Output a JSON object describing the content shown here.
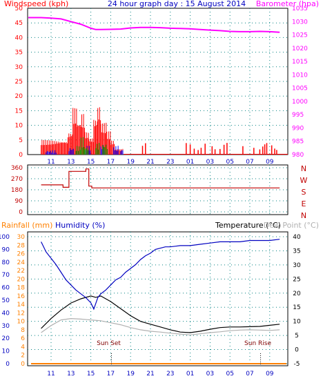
{
  "colors": {
    "wind": "#ff0000",
    "gust_green": "#00a000",
    "gust_blue": "#0000ff",
    "baro": "#ff00ff",
    "dir": "#c00000",
    "humidity": "#0000c0",
    "temp": "#000000",
    "dew": "#b0b0b0",
    "rain": "#ff8000",
    "grid": "#008080",
    "axis_blue": "#0000c0"
  },
  "chart_data": [
    {
      "type": "bar",
      "title": "24 hour graph day : 15 August 2014",
      "left_label": "Windspeed (kph)",
      "right_label": "Barometer (hpa)",
      "x_ticks": [
        "11",
        "13",
        "15",
        "17",
        "19",
        "21",
        "23",
        "01",
        "03",
        "05",
        "07",
        "09"
      ],
      "x_range_hours": [
        0,
        24
      ],
      "y_left_ticks": [
        "0",
        "5",
        "10",
        "15",
        "20",
        "25",
        "30",
        "35",
        "40",
        "45",
        "50"
      ],
      "y_left_range": [
        0,
        50
      ],
      "y_right_ticks": [
        "980",
        "985",
        "990",
        "995",
        "1000",
        "1005",
        "1010",
        "1015",
        "1020",
        "1025",
        "1030",
        "1035"
      ],
      "y_right_range": [
        980,
        1035
      ],
      "series": [
        {
          "kind": "line",
          "x_hours": [
            0,
            1,
            2,
            3,
            4,
            5,
            5.5,
            6,
            7,
            8,
            9,
            10,
            11,
            12,
            13,
            14,
            15,
            16,
            17,
            18,
            19,
            20,
            21,
            22,
            23,
            24
          ],
          "values": [
            1031.5,
            1031.3,
            1031.0,
            1030.0,
            1029.0,
            1027.5,
            1027.0,
            1027.0,
            1027.1,
            1027.2,
            1027.6,
            1027.8,
            1027.8,
            1027.7,
            1027.5,
            1027.4,
            1027.3,
            1027.0,
            1026.8,
            1026.6,
            1026.3,
            1026.2,
            1026.2,
            1026.3,
            1026.2,
            1026.0
          ]
        },
        {
          "kind": "bars",
          "segments": [
            {
              "from_hour": 0,
              "to_hour": 2.7,
              "level": 5
            },
            {
              "from_hour": 2.7,
              "to_hour": 3.2,
              "level": 8
            },
            {
              "from_hour": 3.2,
              "to_hour": 3.6,
              "level": 16
            },
            {
              "from_hour": 3.6,
              "to_hour": 4.0,
              "level": 12
            },
            {
              "from_hour": 4.0,
              "to_hour": 4.4,
              "level": 14
            },
            {
              "from_hour": 4.4,
              "to_hour": 4.8,
              "level": 8
            },
            {
              "from_hour": 4.8,
              "to_hour": 5.3,
              "level": 6
            },
            {
              "from_hour": 5.3,
              "to_hour": 5.7,
              "level": 13
            },
            {
              "from_hour": 5.7,
              "to_hour": 6.0,
              "level": 17
            },
            {
              "from_hour": 6.0,
              "to_hour": 6.6,
              "level": 11
            },
            {
              "from_hour": 6.6,
              "to_hour": 7.0,
              "level": 8
            },
            {
              "from_hour": 7.0,
              "to_hour": 7.4,
              "level": 5
            },
            {
              "from_hour": 7.4,
              "to_hour": 8.3,
              "level": 2
            },
            {
              "from_hour": 8.3,
              "to_hour": 24,
              "level": 0
            }
          ],
          "sparse_x_hours": [
            10.2,
            10.5,
            14.6,
            15.0,
            15.4,
            15.8,
            16.1,
            16.5,
            17.2,
            17.5,
            18.0,
            18.4,
            18.7,
            20.3,
            21.4,
            22.0,
            22.3,
            22.5,
            22.7,
            23.2,
            23.5,
            23.7
          ]
        },
        {
          "kind": "gust_green",
          "segments": [
            {
              "from_hour": 3.5,
              "to_hour": 4.0,
              "level": 3
            },
            {
              "from_hour": 4.0,
              "to_hour": 4.4,
              "level": 6
            },
            {
              "from_hour": 4.4,
              "to_hour": 4.8,
              "level": 3
            },
            {
              "from_hour": 5.5,
              "to_hour": 5.9,
              "level": 4
            },
            {
              "from_hour": 6.2,
              "to_hour": 6.7,
              "level": 4
            }
          ]
        },
        {
          "kind": "gust_blue",
          "segments": [
            {
              "from_hour": 0.5,
              "to_hour": 1.5,
              "level": 1.5
            },
            {
              "from_hour": 2.8,
              "to_hour": 3.3,
              "level": 2.5
            },
            {
              "from_hour": 4.5,
              "to_hour": 5.0,
              "level": 3
            },
            {
              "from_hour": 6.0,
              "to_hour": 6.4,
              "level": 3.5
            },
            {
              "from_hour": 7.3,
              "to_hour": 7.8,
              "level": 3
            },
            {
              "from_hour": 8.0,
              "to_hour": 8.3,
              "level": 2
            }
          ]
        }
      ]
    },
    {
      "type": "line",
      "title": "",
      "y_left_ticks": [
        "0",
        "90",
        "180",
        "270",
        "360"
      ],
      "y_range": [
        0,
        360
      ],
      "right_labels": [
        "N",
        "W",
        "S",
        "E",
        "N"
      ],
      "series": [
        {
          "x_hours": [
            0,
            2.2,
            2.2,
            2.8,
            2.8,
            4.5,
            4.5,
            4.8,
            4.8,
            5.1,
            5.1,
            24
          ],
          "values": [
            220,
            220,
            200,
            200,
            330,
            330,
            350,
            350,
            210,
            210,
            195,
            195
          ]
        }
      ]
    },
    {
      "type": "line",
      "title": "",
      "left_label_rain": "Rainfall (mm)",
      "left_label_hum": "Humidity (%)",
      "right_label_temp": "Temperature (°C)",
      "right_label_dew": "Dew Point (°C)",
      "y_rain_ticks": [
        "0",
        "2",
        "4",
        "6",
        "8",
        "10",
        "12",
        "14",
        "16",
        "18",
        "20",
        "22",
        "24",
        "26",
        "28",
        "30"
      ],
      "y_rain_range": [
        0,
        30
      ],
      "y_hum_ticks": [
        "0",
        "10",
        "20",
        "30",
        "40",
        "50",
        "60",
        "70",
        "80",
        "90",
        "100"
      ],
      "y_hum_range": [
        0,
        100
      ],
      "y_temp_ticks": [
        "-5",
        "0",
        "5",
        "10",
        "15",
        "20",
        "25",
        "30",
        "35",
        "40"
      ],
      "y_temp_range": [
        -5,
        40
      ],
      "annotations": [
        {
          "text": "Sun Set",
          "x_hour": 6.8
        },
        {
          "text": "Sun Rise",
          "x_hour": 21.8
        }
      ],
      "series": [
        {
          "name": "Humidity (%)",
          "x_hours": [
            0,
            0.5,
            1,
            1.5,
            2,
            2.5,
            3,
            3.5,
            4,
            4.5,
            5,
            5.3,
            5.7,
            6,
            6.5,
            7,
            7.5,
            8,
            8.5,
            9,
            9.5,
            10,
            10.5,
            11,
            11.5,
            12,
            12.5,
            13,
            14,
            15,
            16,
            17,
            18,
            19,
            20,
            21,
            22,
            23,
            24
          ],
          "values": [
            96,
            88,
            83,
            78,
            72,
            66,
            62,
            58,
            55,
            52,
            48,
            43,
            52,
            55,
            58,
            62,
            66,
            68,
            72,
            75,
            78,
            82,
            85,
            87,
            90,
            91,
            92,
            92,
            93,
            93,
            94,
            95,
            96,
            96,
            96,
            97,
            97,
            97,
            98
          ]
        },
        {
          "name": "Temperature (°C)",
          "x_hours": [
            0,
            1,
            2,
            3,
            4,
            5,
            5.5,
            6,
            7,
            8,
            9,
            10,
            11,
            12,
            13,
            14,
            15,
            16,
            17,
            18,
            19,
            20,
            21,
            22,
            23,
            24
          ],
          "values": [
            7.5,
            11,
            14,
            16.5,
            18,
            19,
            18.5,
            19,
            17,
            14.5,
            12,
            10,
            9,
            8,
            7,
            6.2,
            6,
            6.5,
            7.2,
            7.8,
            8,
            8,
            8.1,
            8.2,
            8.6,
            9
          ]
        },
        {
          "name": "Dew Point (°C)",
          "x_hours": [
            0,
            1,
            2,
            3,
            4,
            5,
            6,
            7,
            8,
            9,
            10,
            11,
            12,
            13,
            14,
            15,
            16,
            17,
            18,
            19,
            20,
            21,
            22,
            23,
            24
          ],
          "values": [
            6,
            8.5,
            10.5,
            11,
            10.8,
            10.5,
            10.2,
            9.5,
            8.8,
            7.8,
            7,
            6.5,
            6.2,
            5.8,
            5.5,
            5.2,
            5.6,
            6,
            6.3,
            6.7,
            6.9,
            7,
            6.9,
            6.8,
            7
          ]
        },
        {
          "name": "Rainfall (mm)",
          "x_hours": [
            0,
            24
          ],
          "values": [
            0,
            0
          ]
        }
      ]
    }
  ]
}
